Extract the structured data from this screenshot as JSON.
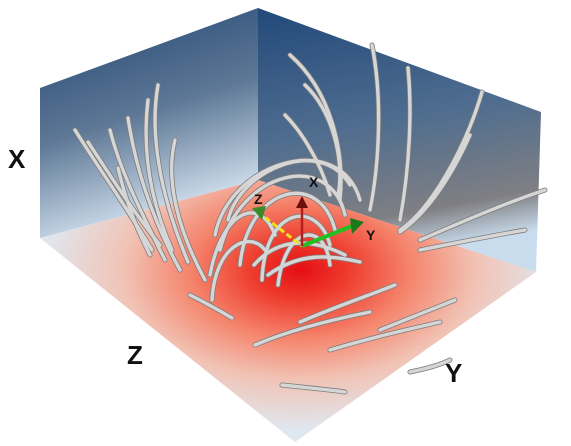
{
  "scene": {
    "outer_axis_labels": {
      "x": "X",
      "z": "Z",
      "y": "Y"
    },
    "glyph_labels": {
      "x": "X",
      "z": "Z",
      "y": "Y"
    },
    "colors": {
      "wall_top": "#234a78",
      "wall_bottom": "#c9dcec",
      "floor_hot": "#e8141a",
      "floor_mid": "#f07a62",
      "floor_cool": "#e6ecf3",
      "streamline": "#c9c9c9",
      "glyph_x": "#b41e1e",
      "glyph_y": "#22b022",
      "glyph_z": "#f2e21a"
    }
  }
}
